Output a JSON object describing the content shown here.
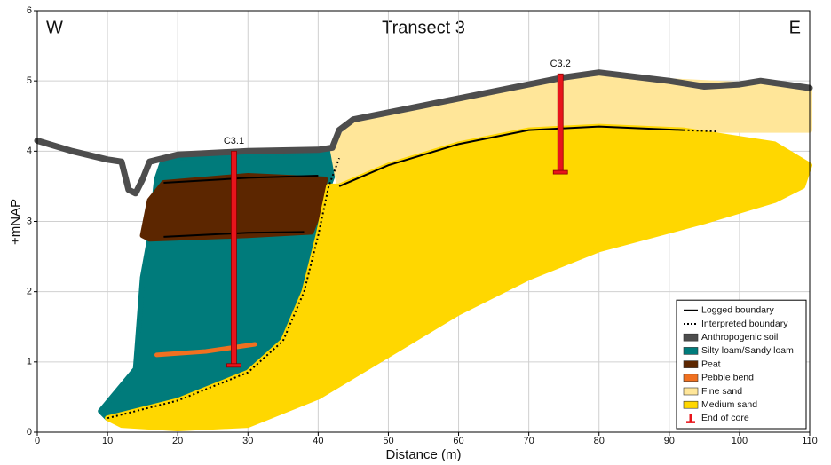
{
  "chart_data": {
    "type": "cross-section",
    "title": "Transect 3",
    "annotations": {
      "left": "W",
      "right": "E"
    },
    "x_label": "Distance (m)",
    "y_label": "+mNAP",
    "xlim": [
      0,
      110
    ],
    "ylim": [
      0,
      6
    ],
    "xticks": [
      0,
      10,
      20,
      30,
      40,
      50,
      60,
      70,
      80,
      90,
      100,
      110
    ],
    "yticks": [
      0,
      1,
      2,
      3,
      4,
      5,
      6
    ],
    "grid": true,
    "legend_position": "lower right",
    "boundary_styles": [
      {
        "name": "Logged boundary",
        "dashed": false
      },
      {
        "name": "Interpreted boundary",
        "dashed": true
      }
    ],
    "layers": [
      {
        "name": "Anthropogenic soil",
        "color": "#4d4d4d",
        "kind": "line",
        "x": [
          0,
          5,
          10,
          12,
          13,
          14,
          15,
          16,
          20,
          30,
          40,
          42,
          43,
          45,
          55,
          65,
          75,
          80,
          90,
          95,
          100,
          103,
          110
        ],
        "y": [
          4.15,
          4.0,
          3.88,
          3.85,
          3.45,
          3.4,
          3.6,
          3.85,
          3.95,
          4.0,
          4.02,
          4.05,
          4.3,
          4.45,
          4.65,
          4.85,
          5.05,
          5.12,
          5.0,
          4.92,
          4.95,
          5.0,
          4.9
        ]
      },
      {
        "name": "Silty loam/Sandy loam",
        "color": "#007b7b",
        "kind": "area",
        "x": [
          9,
          14,
          15,
          16,
          17,
          18,
          30,
          42,
          43,
          41.5,
          40,
          38,
          35,
          30,
          20,
          10
        ],
        "y": [
          0.3,
          0.9,
          2.2,
          2.75,
          3.6,
          3.9,
          3.95,
          4.0,
          3.9,
          3.5,
          2.8,
          2.0,
          1.3,
          0.85,
          0.45,
          0.2
        ]
      },
      {
        "name": "Peat",
        "color": "#5c2600",
        "kind": "area",
        "x": [
          15,
          16,
          18,
          30,
          41,
          40,
          39,
          30,
          16
        ],
        "y": [
          2.8,
          3.3,
          3.55,
          3.65,
          3.6,
          3.1,
          2.85,
          2.8,
          2.75
        ]
      },
      {
        "name": "Pebble bend",
        "color": "#f07020",
        "kind": "line",
        "x": [
          17,
          24,
          31
        ],
        "y": [
          1.1,
          1.15,
          1.25
        ]
      },
      {
        "name": "Fine sand",
        "color": "#ffe699",
        "kind": "area",
        "x": [
          42,
          45,
          55,
          65,
          75,
          80,
          90,
          100,
          110,
          110,
          92,
          80,
          70,
          60,
          50,
          43
        ],
        "y": [
          4.05,
          4.4,
          4.6,
          4.85,
          5.05,
          5.1,
          5.0,
          4.95,
          4.9,
          4.3,
          4.3,
          4.35,
          4.3,
          4.1,
          3.8,
          3.5
        ]
      },
      {
        "name": "Medium sand",
        "color": "#ffd700",
        "kind": "area",
        "x": [
          10,
          20,
          30,
          35,
          38,
          40,
          41.5,
          43,
          50,
          60,
          70,
          80,
          92,
          105,
          110,
          109,
          105,
          95,
          80,
          70,
          60,
          50,
          40,
          30,
          20,
          12
        ],
        "y": [
          0.2,
          0.45,
          0.85,
          1.3,
          2.0,
          2.8,
          3.5,
          3.5,
          3.8,
          4.1,
          4.3,
          4.35,
          4.3,
          4.1,
          3.8,
          3.5,
          3.3,
          3.0,
          2.6,
          2.2,
          1.7,
          1.1,
          0.5,
          0.1,
          0.05,
          0.1
        ]
      }
    ],
    "boundaries": [
      {
        "style": 0,
        "x": [
          18,
          30,
          40
        ],
        "y": [
          3.55,
          3.62,
          3.65
        ]
      },
      {
        "style": 0,
        "x": [
          18,
          30,
          38
        ],
        "y": [
          2.78,
          2.84,
          2.85
        ]
      },
      {
        "style": 0,
        "x": [
          43,
          50,
          60,
          70,
          80,
          92
        ],
        "y": [
          3.5,
          3.8,
          4.1,
          4.3,
          4.35,
          4.3
        ]
      },
      {
        "style": 1,
        "x": [
          92,
          97
        ],
        "y": [
          4.3,
          4.28
        ]
      },
      {
        "style": 1,
        "x": [
          10,
          20,
          30,
          35,
          38,
          40,
          41.5,
          43
        ],
        "y": [
          0.2,
          0.45,
          0.85,
          1.3,
          2.0,
          2.8,
          3.5,
          3.9
        ]
      }
    ],
    "core_marker": {
      "name": "End of core",
      "color": "#e8141b"
    },
    "cores": [
      {
        "name": "C3.1",
        "x": 28,
        "top": 4.0,
        "bottom": 0.95
      },
      {
        "name": "C3.2",
        "x": 74.5,
        "top": 5.1,
        "bottom": 3.7
      }
    ]
  }
}
